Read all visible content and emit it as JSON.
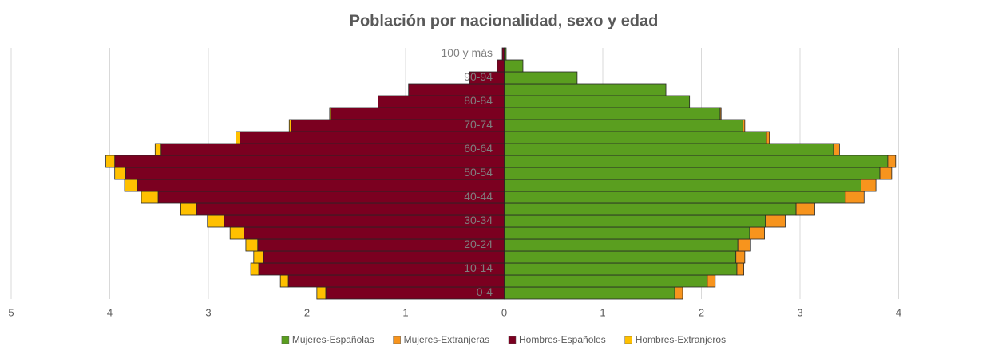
{
  "chart_data": {
    "type": "pyramid",
    "title": "Población por nacionalidad, sexo y edad",
    "categories": [
      "0-4",
      null,
      "10-14",
      null,
      "20-24",
      null,
      "30-34",
      null,
      "40-44",
      null,
      "50-54",
      null,
      "60-64",
      null,
      "70-74",
      null,
      "80-84",
      null,
      "90-94",
      null,
      "100 y más"
    ],
    "series": [
      {
        "name": "Mujeres-Españolas",
        "color": "#5a9e1f",
        "values": [
          1.73,
          2.06,
          2.36,
          2.35,
          2.37,
          2.49,
          2.65,
          2.96,
          3.46,
          3.62,
          3.81,
          3.89,
          3.34,
          2.66,
          2.42,
          2.19,
          1.88,
          1.64,
          0.74,
          0.19,
          0.02
        ]
      },
      {
        "name": "Mujeres-Extranjeras",
        "color": "#f7941d",
        "values": [
          0.08,
          0.08,
          0.07,
          0.09,
          0.13,
          0.15,
          0.2,
          0.19,
          0.19,
          0.15,
          0.12,
          0.08,
          0.06,
          0.03,
          0.02,
          0.01,
          0,
          0,
          0,
          0,
          0
        ]
      },
      {
        "name": "Hombres-Españoles",
        "color": "#7b0020",
        "values": [
          -1.81,
          -2.19,
          -2.49,
          -2.44,
          -2.5,
          -2.64,
          -2.84,
          -3.12,
          -3.51,
          -3.72,
          -3.84,
          -3.95,
          -3.48,
          -2.68,
          -2.16,
          -1.76,
          -1.28,
          -0.97,
          -0.35,
          -0.07,
          -0.02
        ]
      },
      {
        "name": "Hombres-Extranjeros",
        "color": "#ffc000",
        "values": [
          -0.09,
          -0.08,
          -0.08,
          -0.1,
          -0.12,
          -0.14,
          -0.17,
          -0.16,
          -0.17,
          -0.13,
          -0.11,
          -0.09,
          -0.06,
          -0.04,
          -0.02,
          -0.01,
          0,
          0,
          0,
          0,
          0
        ]
      }
    ],
    "xlim": [
      -5,
      5
    ],
    "xticks": [
      {
        "value": -5,
        "label": "5"
      },
      {
        "value": -4,
        "label": "4"
      },
      {
        "value": -3,
        "label": "3"
      },
      {
        "value": -2,
        "label": "2"
      },
      {
        "value": -1,
        "label": "1"
      },
      0,
      1,
      2,
      3,
      4,
      5
    ],
    "grid": true,
    "legend": "bottom"
  }
}
